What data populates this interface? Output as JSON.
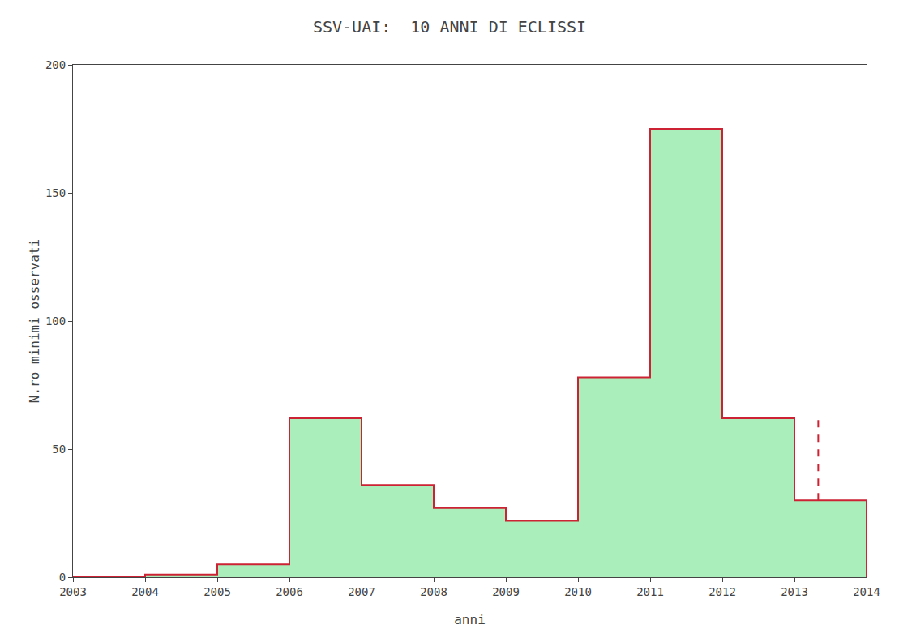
{
  "chart_data": {
    "type": "histogram",
    "title": "SSV-UAI:  10 ANNI DI ECLISSI",
    "xlabel": "anni",
    "ylabel": "N.ro minimi osservati",
    "bins": [
      2003,
      2004,
      2005,
      2006,
      2007,
      2008,
      2009,
      2010,
      2011,
      2012,
      2013,
      2014
    ],
    "series": [
      {
        "type": "bar",
        "color": "#aaeebb",
        "values": [
          0,
          1,
          5,
          62,
          36,
          27,
          22,
          78,
          175,
          62,
          30
        ]
      },
      {
        "type": "step",
        "color": "#cc2233",
        "values": [
          0,
          1,
          5,
          62,
          36,
          27,
          22,
          78,
          175,
          62,
          30
        ]
      },
      {
        "type": "line",
        "line_style": "dashed",
        "color": "#cc2233",
        "x": [
          2013.33,
          2013.33
        ],
        "values": [
          30,
          62
        ]
      }
    ],
    "xlim": [
      2003,
      2014
    ],
    "ylim": [
      0,
      200
    ],
    "xticks": [
      2003,
      2004,
      2005,
      2006,
      2007,
      2008,
      2009,
      2010,
      2011,
      2012,
      2013,
      2014
    ],
    "yticks": [
      0,
      50,
      100,
      150,
      200
    ],
    "grid": false
  }
}
